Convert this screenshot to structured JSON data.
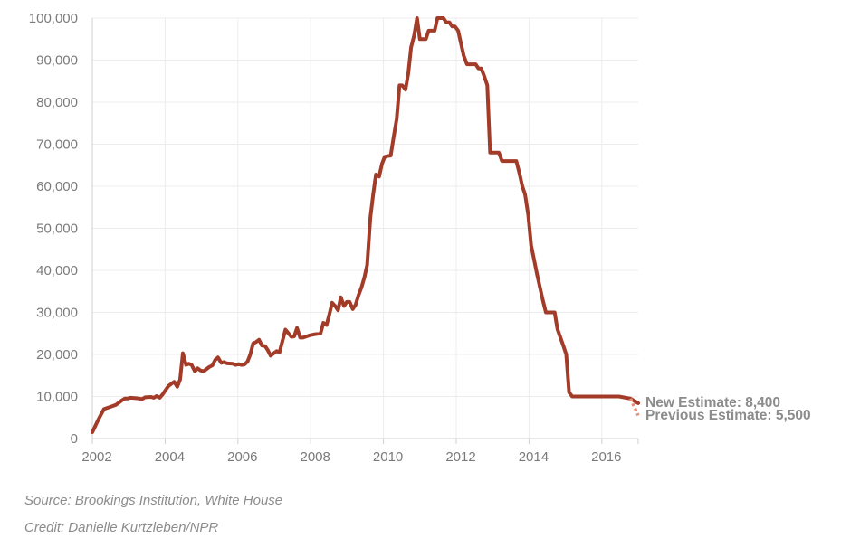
{
  "chart_data": {
    "type": "line",
    "title": "",
    "xlabel": "",
    "ylabel": "",
    "xlim": [
      2002,
      2016.9
    ],
    "ylim": [
      0,
      100000
    ],
    "x_ticks": [
      "2002",
      "2004",
      "2006",
      "2008",
      "2010",
      "2012",
      "2014",
      "2016"
    ],
    "y_ticks": [
      "0",
      "10,000",
      "20,000",
      "30,000",
      "40,000",
      "50,000",
      "60,000",
      "70,000",
      "80,000",
      "90,000",
      "100,000"
    ],
    "grid": true,
    "series": [
      {
        "color": "#a33b29",
        "style": "solid",
        "points": [
          [
            2002.0,
            1500
          ],
          [
            2002.17,
            4500
          ],
          [
            2002.33,
            7000
          ],
          [
            2002.5,
            7500
          ],
          [
            2002.67,
            8000
          ],
          [
            2002.83,
            9000
          ],
          [
            2002.92,
            9500
          ],
          [
            2003.0,
            9500
          ],
          [
            2003.08,
            9700
          ],
          [
            2003.25,
            9600
          ],
          [
            2003.42,
            9400
          ],
          [
            2003.5,
            9800
          ],
          [
            2003.67,
            9900
          ],
          [
            2003.75,
            9700
          ],
          [
            2003.83,
            10100
          ],
          [
            2003.92,
            9700
          ],
          [
            2004.0,
            10500
          ],
          [
            2004.17,
            12500
          ],
          [
            2004.33,
            13500
          ],
          [
            2004.42,
            12300
          ],
          [
            2004.5,
            14000
          ],
          [
            2004.58,
            20300
          ],
          [
            2004.67,
            17500
          ],
          [
            2004.75,
            17800
          ],
          [
            2004.83,
            17500
          ],
          [
            2004.92,
            16000
          ],
          [
            2005.0,
            16700
          ],
          [
            2005.08,
            16200
          ],
          [
            2005.17,
            16000
          ],
          [
            2005.33,
            17000
          ],
          [
            2005.42,
            17400
          ],
          [
            2005.5,
            18700
          ],
          [
            2005.58,
            19300
          ],
          [
            2005.67,
            18000
          ],
          [
            2005.75,
            18200
          ],
          [
            2005.83,
            17900
          ],
          [
            2006.0,
            17800
          ],
          [
            2006.08,
            17500
          ],
          [
            2006.17,
            17700
          ],
          [
            2006.25,
            17500
          ],
          [
            2006.33,
            17600
          ],
          [
            2006.42,
            18300
          ],
          [
            2006.5,
            20000
          ],
          [
            2006.58,
            22600
          ],
          [
            2006.67,
            23000
          ],
          [
            2006.75,
            23500
          ],
          [
            2006.83,
            22100
          ],
          [
            2006.92,
            22000
          ],
          [
            2007.0,
            21000
          ],
          [
            2007.08,
            19700
          ],
          [
            2007.17,
            20300
          ],
          [
            2007.25,
            20800
          ],
          [
            2007.33,
            20500
          ],
          [
            2007.5,
            25900
          ],
          [
            2007.58,
            25100
          ],
          [
            2007.67,
            24200
          ],
          [
            2007.75,
            24300
          ],
          [
            2007.83,
            26300
          ],
          [
            2007.92,
            24000
          ],
          [
            2008.0,
            24000
          ],
          [
            2008.17,
            24500
          ],
          [
            2008.33,
            24800
          ],
          [
            2008.5,
            25000
          ],
          [
            2008.58,
            27500
          ],
          [
            2008.67,
            27000
          ],
          [
            2008.75,
            29500
          ],
          [
            2008.83,
            32300
          ],
          [
            2008.92,
            31500
          ],
          [
            2009.0,
            30500
          ],
          [
            2009.08,
            33600
          ],
          [
            2009.17,
            31500
          ],
          [
            2009.25,
            32500
          ],
          [
            2009.33,
            32500
          ],
          [
            2009.42,
            30800
          ],
          [
            2009.5,
            31800
          ],
          [
            2009.58,
            34000
          ],
          [
            2009.67,
            36000
          ],
          [
            2009.75,
            38300
          ],
          [
            2009.83,
            41300
          ],
          [
            2009.92,
            52500
          ],
          [
            2010.0,
            58000
          ],
          [
            2010.08,
            62800
          ],
          [
            2010.17,
            62300
          ],
          [
            2010.25,
            65300
          ],
          [
            2010.33,
            67000
          ],
          [
            2010.42,
            67200
          ],
          [
            2010.5,
            67300
          ],
          [
            2010.58,
            71500
          ],
          [
            2010.67,
            76000
          ],
          [
            2010.75,
            84000
          ],
          [
            2010.83,
            84000
          ],
          [
            2010.92,
            83000
          ],
          [
            2011.0,
            86800
          ],
          [
            2011.08,
            93000
          ],
          [
            2011.17,
            96000
          ],
          [
            2011.25,
            100000
          ],
          [
            2011.33,
            95000
          ],
          [
            2011.5,
            95000
          ],
          [
            2011.58,
            97000
          ],
          [
            2011.75,
            97000
          ],
          [
            2011.83,
            100000
          ],
          [
            2012.0,
            100000
          ],
          [
            2012.08,
            99000
          ],
          [
            2012.17,
            99000
          ],
          [
            2012.25,
            98000
          ],
          [
            2012.33,
            98000
          ],
          [
            2012.42,
            97000
          ],
          [
            2012.5,
            94000
          ],
          [
            2012.58,
            91000
          ],
          [
            2012.67,
            89000
          ],
          [
            2012.83,
            89000
          ],
          [
            2012.92,
            89000
          ],
          [
            2013.0,
            88000
          ],
          [
            2013.08,
            88000
          ],
          [
            2013.17,
            86000
          ],
          [
            2013.25,
            84000
          ],
          [
            2013.33,
            68000
          ],
          [
            2013.5,
            68000
          ],
          [
            2013.58,
            68000
          ],
          [
            2013.67,
            66000
          ],
          [
            2013.83,
            66000
          ],
          [
            2014.0,
            66000
          ],
          [
            2014.08,
            66000
          ],
          [
            2014.17,
            63000
          ],
          [
            2014.25,
            60000
          ],
          [
            2014.33,
            58000
          ],
          [
            2014.42,
            53000
          ],
          [
            2014.5,
            46000
          ],
          [
            2014.67,
            39000
          ],
          [
            2014.83,
            33000
          ],
          [
            2014.92,
            30000
          ],
          [
            2015.08,
            30000
          ],
          [
            2015.17,
            30000
          ],
          [
            2015.25,
            26000
          ],
          [
            2015.42,
            22000
          ],
          [
            2015.5,
            20000
          ],
          [
            2015.58,
            11000
          ],
          [
            2015.67,
            10000
          ],
          [
            2015.83,
            10000
          ],
          [
            2016.0,
            10000
          ],
          [
            2016.25,
            10000
          ],
          [
            2016.5,
            10000
          ],
          [
            2016.75,
            10000
          ],
          [
            2016.83,
            10000
          ],
          [
            2017.0,
            10000
          ],
          [
            2017.33,
            9500
          ],
          [
            2017.55,
            8400
          ]
        ]
      },
      {
        "color": "#e59178",
        "style": "dotted",
        "points": [
          [
            2017.33,
            9500
          ],
          [
            2017.55,
            5500
          ]
        ]
      }
    ],
    "annotations": [
      {
        "text": "New Estimate: 8,400",
        "x": 2017.55,
        "y": 8400
      },
      {
        "text": "Previous Estimate: 5,500",
        "x": 2017.55,
        "y": 5500
      }
    ]
  },
  "footer": {
    "source": "Source: Brookings Institution, White House",
    "credit": "Credit: Danielle Kurtzleben/NPR"
  }
}
